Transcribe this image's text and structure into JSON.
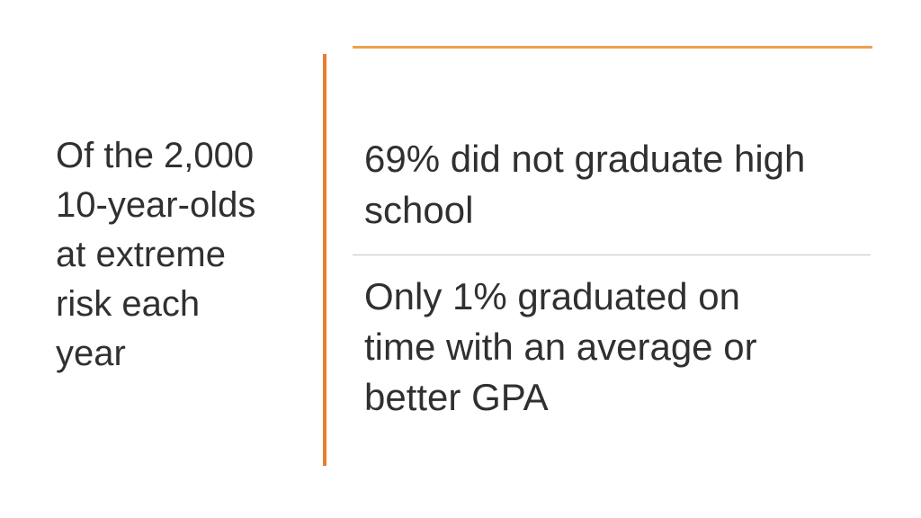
{
  "slide": {
    "background": "#FFFFFF"
  },
  "left_panel": {
    "lines": [
      "Of the 2,000",
      "10-year-olds",
      "at extreme",
      "risk each",
      "year"
    ]
  },
  "right_panel": {
    "items": [
      {
        "lines": [
          "69% did not graduate high",
          "school"
        ]
      },
      {
        "lines": [
          "Only 1% graduated on",
          "time with an average or",
          "better GPA"
        ]
      }
    ]
  },
  "colors": {
    "accent_orange": "#E87D2E",
    "top_rule_orange": "#EDA04F",
    "divider_gray": "#C4C4C4",
    "text_dark": "#303030"
  }
}
